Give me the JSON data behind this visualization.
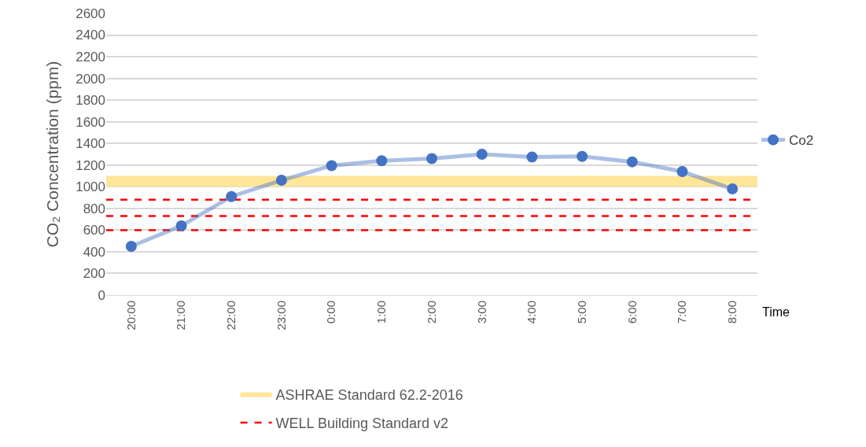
{
  "chart_data": {
    "type": "line",
    "xlabel": "Time",
    "ylabel": "CO₂ Concentration (ppm)",
    "categories": [
      "20:00",
      "21:00",
      "22:00",
      "23:00",
      "0:00",
      "1:00",
      "2:00",
      "3:00",
      "4:00",
      "5:00",
      "6:00",
      "7:00",
      "8:00"
    ],
    "series": [
      {
        "name": "Co2",
        "color": "#4472c4",
        "values": [
          450,
          640,
          910,
          1060,
          1195,
          1240,
          1260,
          1300,
          1275,
          1280,
          1230,
          1140,
          980
        ]
      }
    ],
    "ylim": [
      0,
      2600
    ],
    "yticks": [
      0,
      200,
      400,
      600,
      800,
      1000,
      1200,
      1400,
      1600,
      1800,
      2000,
      2200,
      2400,
      2600
    ],
    "grid": "y",
    "legend": "right",
    "marker": "circle",
    "line_style": "solid",
    "bands": [
      {
        "axis": "y",
        "from": 1000,
        "to": 1100,
        "label": "ASHRAE Standard 62.2-2016",
        "color": "#ffe699"
      }
    ],
    "ref_lines": [
      {
        "axis": "y",
        "value": 880,
        "label": "WELL Building Standard v2",
        "color": "#ff0000",
        "line_style": "dashed"
      },
      {
        "axis": "y",
        "value": 730,
        "color": "#ff0000",
        "line_style": "dashed"
      },
      {
        "axis": "y",
        "value": 600,
        "color": "#ff0000",
        "line_style": "dashed"
      }
    ]
  }
}
